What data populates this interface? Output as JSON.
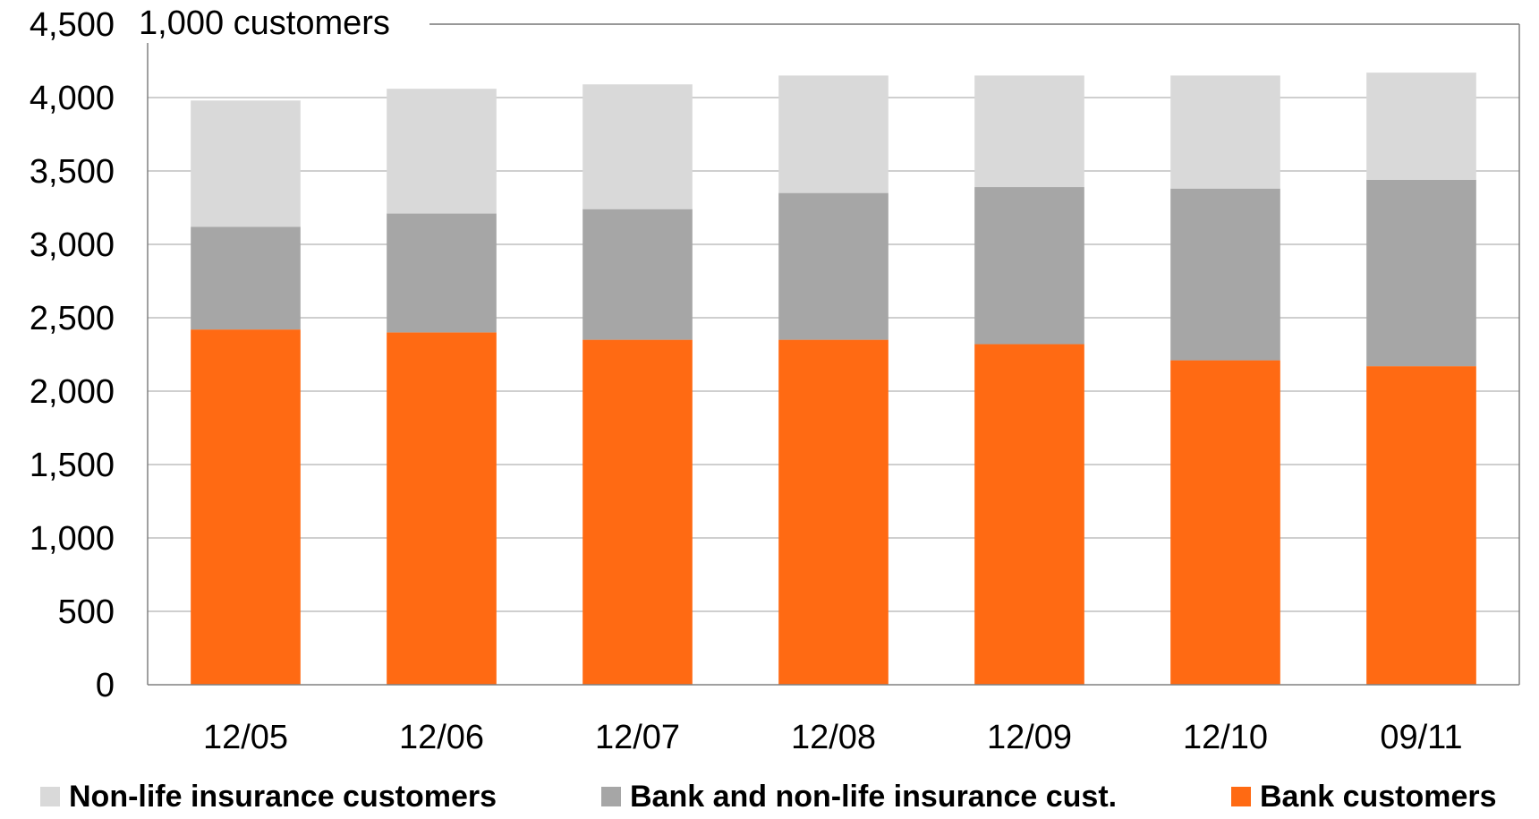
{
  "chart_data": {
    "type": "bar",
    "stacked": true,
    "unit_label": "1,000 customers",
    "categories": [
      "12/05",
      "12/06",
      "12/07",
      "12/08",
      "12/09",
      "12/10",
      "09/11"
    ],
    "series": [
      {
        "name": "Bank customers",
        "color": "#FF6A13",
        "values": [
          2420,
          2400,
          2350,
          2350,
          2320,
          2210,
          2170
        ]
      },
      {
        "name": "Bank and non-life insurance cust.",
        "color": "#A6A6A6",
        "values": [
          700,
          810,
          890,
          1000,
          1070,
          1170,
          1270
        ]
      },
      {
        "name": "Non-life insurance customers",
        "color": "#D9D9D9",
        "values": [
          860,
          850,
          850,
          800,
          760,
          770,
          730
        ]
      }
    ],
    "ylim": [
      0,
      4500
    ],
    "yticks": [
      "0",
      "500",
      "1,000",
      "1,500",
      "2,000",
      "2,500",
      "3,000",
      "3,500",
      "4,000",
      "4,500"
    ],
    "grid": true,
    "legend": {
      "position": "bottom",
      "entries": [
        {
          "label": "Non-life insurance customers",
          "color": "#D9D9D9"
        },
        {
          "label": "Bank and non-life insurance cust.",
          "color": "#A6A6A6"
        },
        {
          "label": "Bank customers",
          "color": "#FF6A13"
        }
      ]
    }
  }
}
